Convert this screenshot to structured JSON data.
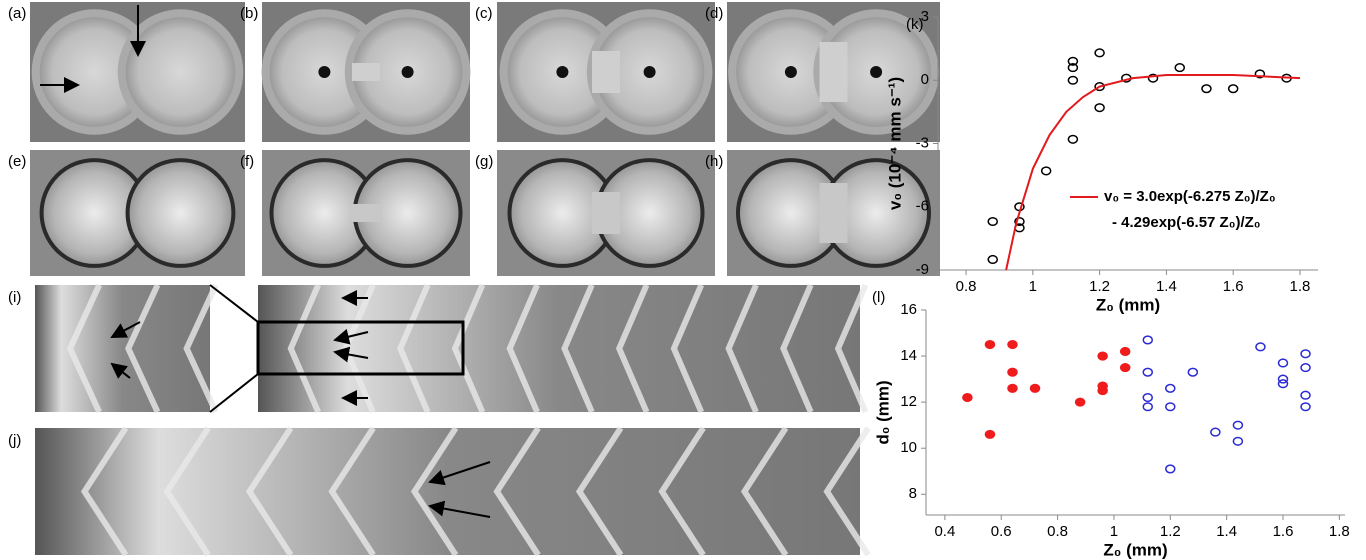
{
  "image_panels": [
    "(a)",
    "(b)",
    "(c)",
    "(d)",
    "(e)",
    "(f)",
    "(g)",
    "(h)",
    "(i)",
    "(j)"
  ],
  "chart_data": [
    {
      "type": "scatter",
      "panel_label": "(k)",
      "x_label": "Z₀ (mm)",
      "y_label": "v₀ (10⁻⁴ mm s⁻¹)",
      "xlim": [
        0.716,
        1.854
      ],
      "xticks": [
        0.8,
        1.0,
        1.2,
        1.4,
        1.6,
        1.8
      ],
      "ylim": [
        -9,
        3
      ],
      "yticks": [
        -9,
        -6,
        -3,
        0,
        3
      ],
      "series": [
        {
          "kind": "points",
          "color": "#000000",
          "x": [
            0.88,
            0.88,
            0.96,
            0.96,
            0.96,
            1.04,
            1.12,
            1.12,
            1.12,
            1.12,
            1.2,
            1.2,
            1.2,
            1.28,
            1.36,
            1.44,
            1.52,
            1.6,
            1.68,
            1.76
          ],
          "values": [
            -6.7,
            -8.5,
            -6.0,
            -6.7,
            -7.0,
            -4.3,
            -2.8,
            0,
            0.6,
            0.9,
            1.3,
            -0.3,
            -1.3,
            0.1,
            0.1,
            0.6,
            -0.4,
            -0.4,
            0.3,
            0.1
          ]
        },
        {
          "kind": "line",
          "color": "#e31a1c",
          "name": "v₀ = 3.0exp(-6.275  Z₀)/Z₀",
          "name_line2": "- 4.29exp(-6.57  Z₀)/Z₀",
          "x": [
            0.92,
            0.95,
            1.0,
            1.05,
            1.1,
            1.15,
            1.2,
            1.3,
            1.4,
            1.6,
            1.8
          ],
          "values": [
            -9,
            -6.8,
            -4.2,
            -2.6,
            -1.5,
            -0.8,
            -0.3,
            0.1,
            0.25,
            0.25,
            0.1
          ]
        }
      ]
    },
    {
      "type": "scatter",
      "panel_label": "(l)",
      "x_label": "Z₀ (mm)",
      "y_label": "d₀ (mm)",
      "xlim": [
        0.333,
        1.82
      ],
      "xticks": [
        0.4,
        0.6,
        0.8,
        1.0,
        1.2,
        1.4,
        1.6,
        1.8
      ],
      "ylim": [
        7.1,
        16
      ],
      "yticks": [
        8,
        10,
        12,
        14,
        16
      ],
      "series": [
        {
          "kind": "filled",
          "color": "#ee1c1c",
          "x": [
            0.48,
            0.56,
            0.56,
            0.64,
            0.64,
            0.64,
            0.72,
            0.88,
            0.96,
            0.96,
            0.96,
            1.04,
            1.04
          ],
          "values": [
            12.2,
            14.5,
            10.6,
            14.5,
            13.3,
            12.6,
            12.6,
            12.0,
            14.0,
            12.7,
            12.5,
            14.2,
            13.5
          ]
        },
        {
          "kind": "open",
          "color": "#2a2ad6",
          "x": [
            1.12,
            1.12,
            1.12,
            1.12,
            1.2,
            1.2,
            1.2,
            1.28,
            1.36,
            1.44,
            1.44,
            1.52,
            1.6,
            1.6,
            1.6,
            1.68,
            1.68,
            1.68,
            1.68
          ],
          "values": [
            14.7,
            13.3,
            12.2,
            11.8,
            12.6,
            11.8,
            9.1,
            13.3,
            10.7,
            11.0,
            10.3,
            14.4,
            13.7,
            13.0,
            12.8,
            14.1,
            13.5,
            12.3,
            11.8
          ]
        }
      ]
    }
  ]
}
